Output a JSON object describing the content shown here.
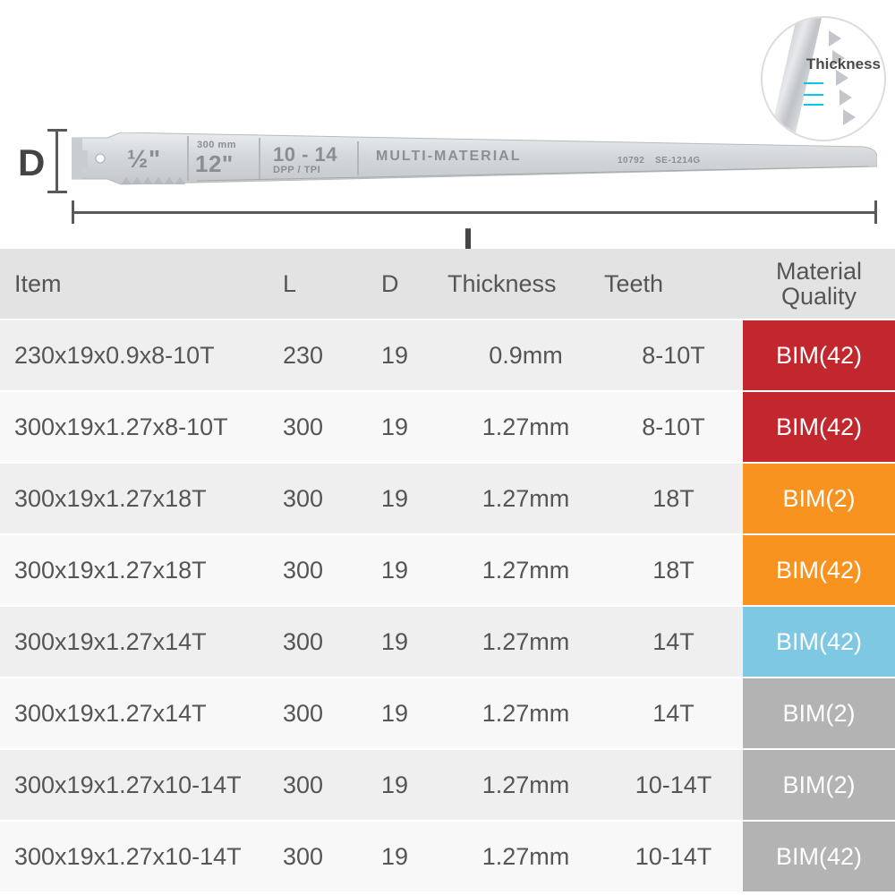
{
  "illustration": {
    "d_label": "D",
    "l_label": "L",
    "thickness_callout_label": "Thickness",
    "blade": {
      "half_inch": "½\"",
      "mm_label": "300 mm",
      "inches": "12\"",
      "dpp_range": "10 - 14",
      "dpp_label": "DPP / TPI",
      "material_label": "MULTI-MATERIAL",
      "code_small": "10792",
      "code_right": "SE-1214G"
    },
    "colors": {
      "indicator_line": "#5a5a5a",
      "cyan_accent": "#00c8e6",
      "blade_light": "#dfe3e6",
      "blade_dark": "#b7bbbe"
    }
  },
  "table": {
    "header": {
      "item": "Item",
      "l": "L",
      "d": "D",
      "thickness": "Thickness",
      "teeth": "Teeth",
      "material_line1": "Material",
      "material_line2": "Quality"
    },
    "row_bg_odd": "#efefef",
    "row_bg_even": "#f8f8f8",
    "header_bg": "#e3e3e3",
    "text_color": "#555555",
    "badge_colors": {
      "red": "#c1272d",
      "orange": "#f7931e",
      "blue": "#7ec8e3",
      "gray": "#b3b3b3"
    },
    "rows": [
      {
        "item": "230x19x0.9x8-10T",
        "l": "230",
        "d": "19",
        "thickness": "0.9mm",
        "teeth": "8-10T",
        "material": "BIM(42)",
        "badge": "red"
      },
      {
        "item": "300x19x1.27x8-10T",
        "l": "300",
        "d": "19",
        "thickness": "1.27mm",
        "teeth": "8-10T",
        "material": "BIM(42)",
        "badge": "red"
      },
      {
        "item": "300x19x1.27x18T",
        "l": "300",
        "d": "19",
        "thickness": "1.27mm",
        "teeth": "18T",
        "material": "BIM(2)",
        "badge": "orange"
      },
      {
        "item": "300x19x1.27x18T",
        "l": "300",
        "d": "19",
        "thickness": "1.27mm",
        "teeth": "18T",
        "material": "BIM(42)",
        "badge": "orange"
      },
      {
        "item": "300x19x1.27x14T",
        "l": "300",
        "d": "19",
        "thickness": "1.27mm",
        "teeth": "14T",
        "material": "BIM(42)",
        "badge": "blue"
      },
      {
        "item": "300x19x1.27x14T",
        "l": "300",
        "d": "19",
        "thickness": "1.27mm",
        "teeth": "14T",
        "material": "BIM(2)",
        "badge": "gray"
      },
      {
        "item": "300x19x1.27x10-14T",
        "l": "300",
        "d": "19",
        "thickness": "1.27mm",
        "teeth": "10-14T",
        "material": "BIM(2)",
        "badge": "gray"
      },
      {
        "item": "300x19x1.27x10-14T",
        "l": "300",
        "d": "19",
        "thickness": "1.27mm",
        "teeth": "10-14T",
        "material": "BIM(42)",
        "badge": "gray"
      }
    ]
  }
}
